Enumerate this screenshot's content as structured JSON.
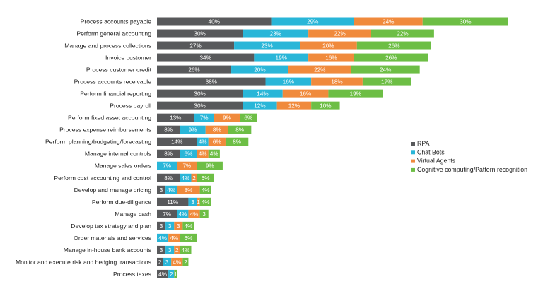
{
  "chart_data": {
    "type": "bar",
    "orientation": "horizontal",
    "stacked": true,
    "grid": false,
    "legend_position": "right",
    "categories": [
      "Process accounts payable",
      "Perform general accounting",
      "Manage and process collections",
      "Invoice customer",
      "Process customer credit",
      "Process accounts receivable",
      "Perform financial reporting",
      "Process payroll",
      "Perform fixed asset accounting",
      "Process expense reimbursements",
      "Perform planning/budgeting/forecasting",
      "Manage internal controls",
      "Manage sales orders",
      "Perform cost accounting and control",
      "Develop and manage pricing",
      "Perform due-diligence",
      "Manage cash",
      "Develop tax strategy and plan",
      "Order materials and services",
      "Manage in-house bank accounts",
      "Monitor and execute risk and hedging transactions",
      "Process taxes"
    ],
    "series": [
      {
        "name": "RPA",
        "color": "#58595b",
        "values": [
          40,
          30,
          27,
          34,
          26,
          38,
          30,
          30,
          13,
          8,
          14,
          8,
          0,
          8,
          3,
          11,
          7,
          3,
          0,
          3,
          2,
          4
        ],
        "labels": [
          "40%",
          "30%",
          "27%",
          "34%",
          "26%",
          "38%",
          "30%",
          "30%",
          "13%",
          "8%",
          "14%",
          "8%",
          "",
          "8%",
          "3",
          "11%",
          "7%",
          "3",
          "",
          "3",
          "2",
          "4%"
        ]
      },
      {
        "name": "Chat Bots",
        "color": "#29b6d8",
        "values": [
          29,
          23,
          23,
          19,
          20,
          16,
          14,
          12,
          7,
          9,
          4,
          6,
          7,
          4,
          4,
          3,
          4,
          3,
          4,
          3,
          3,
          2
        ],
        "labels": [
          "29%",
          "23%",
          "23%",
          "19%",
          "20%",
          "16%",
          "14%",
          "12%",
          "7%",
          "9%",
          "4%",
          "6%",
          "7%",
          "4%",
          "4%",
          "3",
          "4%",
          "3",
          "4%",
          "3",
          "3",
          "2"
        ]
      },
      {
        "name": "Virtual Agents",
        "color": "#f08a3c",
        "values": [
          24,
          22,
          20,
          16,
          22,
          18,
          16,
          12,
          9,
          8,
          6,
          4,
          7,
          2,
          8,
          1,
          4,
          3,
          4,
          2,
          4,
          0
        ],
        "labels": [
          "24%",
          "22%",
          "20%",
          "16%",
          "22%",
          "18%",
          "16%",
          "12%",
          "9%",
          "8%",
          "6%",
          "4%",
          "7%",
          "2",
          "8%",
          "1",
          "4%",
          "3",
          "4%",
          "2",
          "4%",
          ""
        ]
      },
      {
        "name": "Cognitive computing/Pattern recognition",
        "color": "#6dbe45",
        "values": [
          30,
          22,
          26,
          26,
          24,
          17,
          19,
          10,
          6,
          8,
          8,
          4,
          9,
          6,
          4,
          4,
          3,
          4,
          6,
          4,
          2,
          1
        ],
        "labels": [
          "30%",
          "22%",
          "26%",
          "26%",
          "24%",
          "17%",
          "19%",
          "10%",
          "6%",
          "8%",
          "8%",
          "4%",
          "9%",
          "6%",
          "4%",
          "4%",
          "3",
          "4%",
          "6%",
          "4%",
          "2",
          "1"
        ]
      }
    ]
  }
}
